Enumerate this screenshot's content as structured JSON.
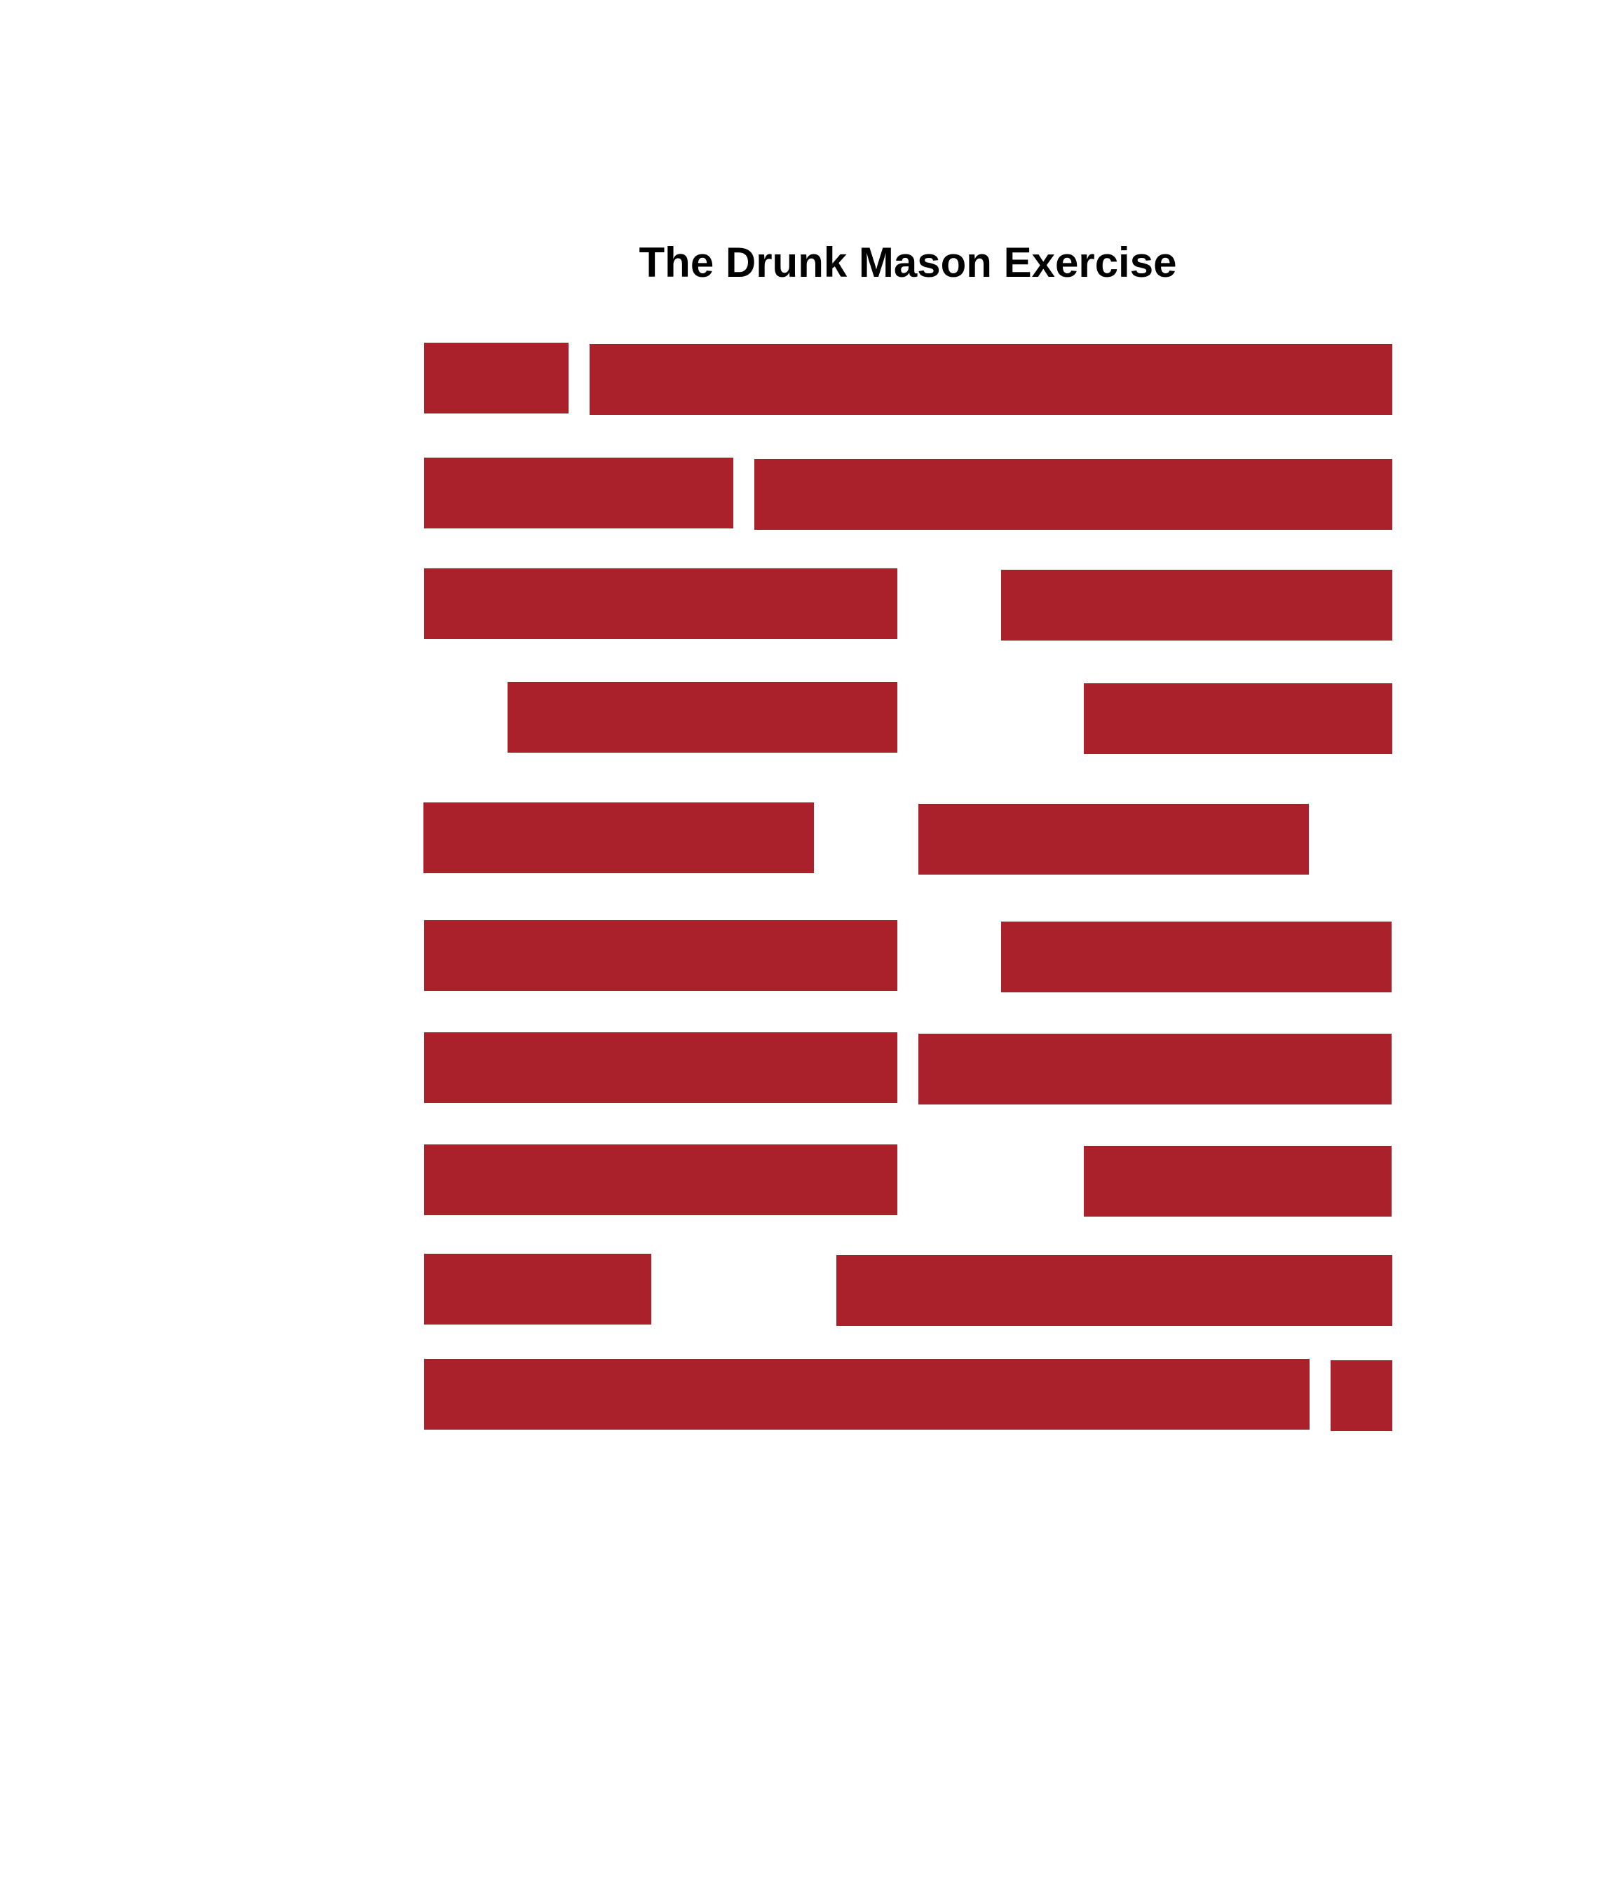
{
  "title": "The Drunk Mason Exercise",
  "brick_color": "#AA212B",
  "background_color": "#FFFFFF",
  "rows": 10
}
